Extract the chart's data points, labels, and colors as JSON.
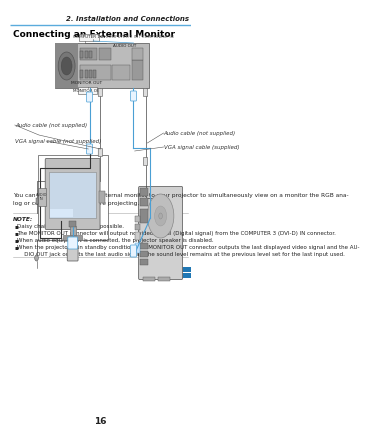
{
  "title_right": "2. Installation and Connections",
  "section_title": "Connecting an External Monitor",
  "page_number": "16",
  "bg_color": "#ffffff",
  "header_line_color": "#5aabdc",
  "body_text_line1": "You can connect a separate, external monitor to your projector to simultaneously view on a monitor the RGB ana-",
  "body_text_line2": "log or component image you’re projecting.",
  "note_label": "NOTE:",
  "note_items": [
    "Daisy chain connection is not possible.",
    "The MONITOR OUT connector will output no video signal (Digital signal) from the COMPUTER 3 (DVI-D) IN connector.",
    "When audio equipment is connected, the projector speaker is disabled.",
    "When the projector is in standby condition, the MONITOR OUT connector outputs the last displayed video signal and the AU-",
    "   DIO OUT jack outputs the last audio signal. The sound level remains at the previous level set for the last input used."
  ],
  "lbl_computer1": "COMPUTER 1 IN",
  "lbl_computer2": "or COMPUTER 2 IN / COMPONENT IN",
  "lbl_audio_left": "Audio cable (not supplied)",
  "lbl_vga_left": "VGA signal cable (not supplied)",
  "lbl_audio_right": "Audio cable (not supplied)",
  "lbl_vga_right": "VGA signal cable (supplied)",
  "lbl_monitor_out": "MONITOR OUT",
  "lbl_audio_out": "AUDIO OUT",
  "lbl_audio_in": "AUDIO\nIN",
  "blue": "#4a9fd4",
  "dark": "#333333",
  "gray_proj": "#b0b0b0",
  "gray_light": "#d8d8d8",
  "gray_dark": "#888888",
  "gray_mid": "#aaaaaa",
  "screen_color": "#c8d8e8",
  "line_note": "#aaaaaa"
}
